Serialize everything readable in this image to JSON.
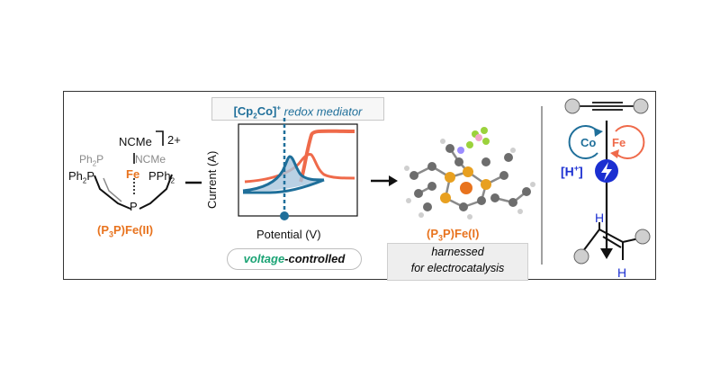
{
  "complex_left": {
    "charge": "2+",
    "name": "(P",
    "name_sub": "3",
    "name_rest": "P)Fe(II)",
    "ligand_top": "NCMe",
    "ligand_right_gray": "NCMe",
    "ph2p_gray": "Ph",
    "ph2p_gray_sub": "2",
    "ph2p_gray_p": "P",
    "ph2p_left": "Ph",
    "ph2p_left_sub": "2",
    "ph2p_left_p": "P",
    "pph2_right": "PPh",
    "pph2_right_sub": "2",
    "fe": "Fe",
    "p_bottom": "P"
  },
  "mediator": {
    "bracket": "[Cp",
    "bracket_sub": "2",
    "bracket_rest": "Co]",
    "charge": "+",
    "text": " redox mediator"
  },
  "cv_plot": {
    "ylabel": "Current (A)",
    "xlabel": "Potential (V)"
  },
  "pill": {
    "voltage": "voltage",
    "controlled": "-controlled"
  },
  "complex_right": {
    "name": "(P",
    "name_sub": "3",
    "name_rest": "P)Fe(I)"
  },
  "harness": {
    "line1": "harnessed",
    "line2": "for electrocatalysis"
  },
  "catalysis": {
    "co": "Co",
    "fe": "Fe",
    "proton": "[H",
    "proton_charge": "+",
    "proton_close": "]",
    "h_top": "H",
    "h_bottom": "H"
  },
  "colors": {
    "orange": "#e8731e",
    "blue": "#1f6f9a",
    "green": "#1aa374",
    "royal_blue": "#1b2fd1",
    "red_orange": "#ef6a4a"
  }
}
